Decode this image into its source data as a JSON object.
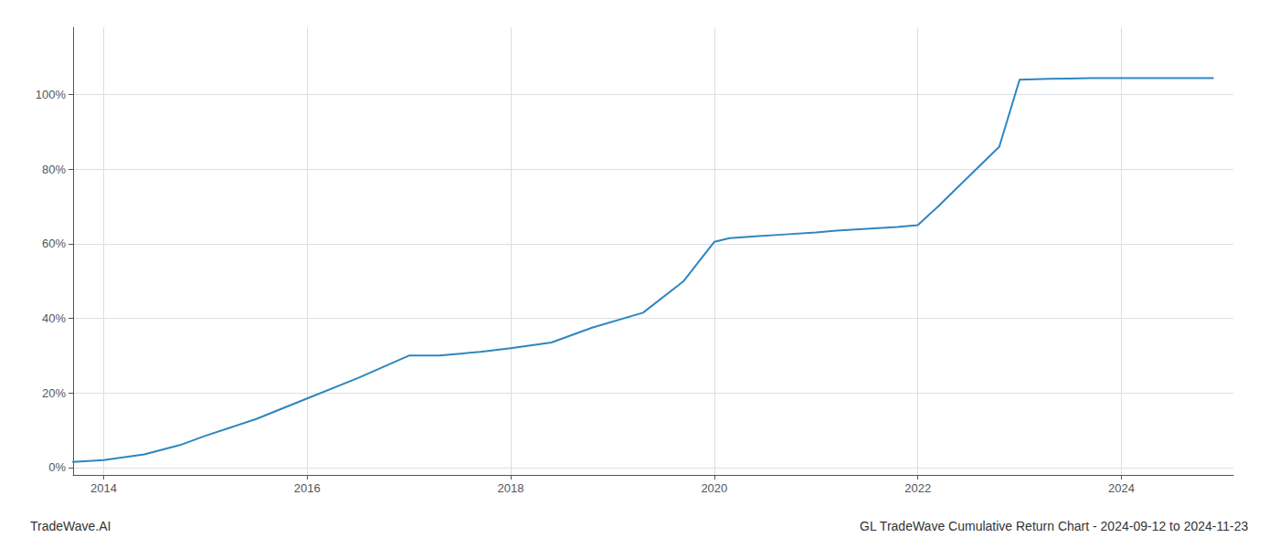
{
  "chart_data": {
    "type": "line",
    "title": "GL TradeWave Cumulative Return Chart - 2024-09-12 to 2024-11-23",
    "annotations": [
      "TradeWave.AI"
    ],
    "x": [
      2013.7,
      2014.0,
      2014.4,
      2014.75,
      2015.0,
      2015.5,
      2016.0,
      2016.5,
      2017.0,
      2017.3,
      2017.7,
      2018.0,
      2018.4,
      2018.8,
      2019.3,
      2019.7,
      2020.0,
      2020.15,
      2020.4,
      2020.7,
      2021.0,
      2021.2,
      2021.5,
      2021.8,
      2022.0,
      2022.2,
      2022.5,
      2022.8,
      2023.0,
      2023.3,
      2023.5,
      2023.7,
      2024.0,
      2024.3,
      2024.6,
      2024.9
    ],
    "values": [
      0.015,
      0.02,
      0.035,
      0.06,
      0.085,
      0.13,
      0.185,
      0.24,
      0.3,
      0.3,
      0.31,
      0.32,
      0.335,
      0.375,
      0.415,
      0.5,
      0.605,
      0.615,
      0.62,
      0.625,
      0.63,
      0.635,
      0.64,
      0.645,
      0.65,
      0.7,
      0.78,
      0.86,
      1.04,
      1.042,
      1.043,
      1.044,
      1.044,
      1.044,
      1.044,
      1.044
    ],
    "color": "#2e86c1",
    "xlim": [
      2013.7,
      2025.1
    ],
    "ylim": [
      -0.02,
      1.18
    ],
    "xticks": [
      2014,
      2016,
      2018,
      2020,
      2022,
      2024
    ],
    "yticks": [
      {
        "value": 0.0,
        "label": "0%"
      },
      {
        "value": 0.2,
        "label": "20%"
      },
      {
        "value": 0.4,
        "label": "40%"
      },
      {
        "value": 0.6,
        "label": "60%"
      },
      {
        "value": 0.8,
        "label": "80%"
      },
      {
        "value": 1.0,
        "label": "100%"
      }
    ],
    "grid": true
  }
}
